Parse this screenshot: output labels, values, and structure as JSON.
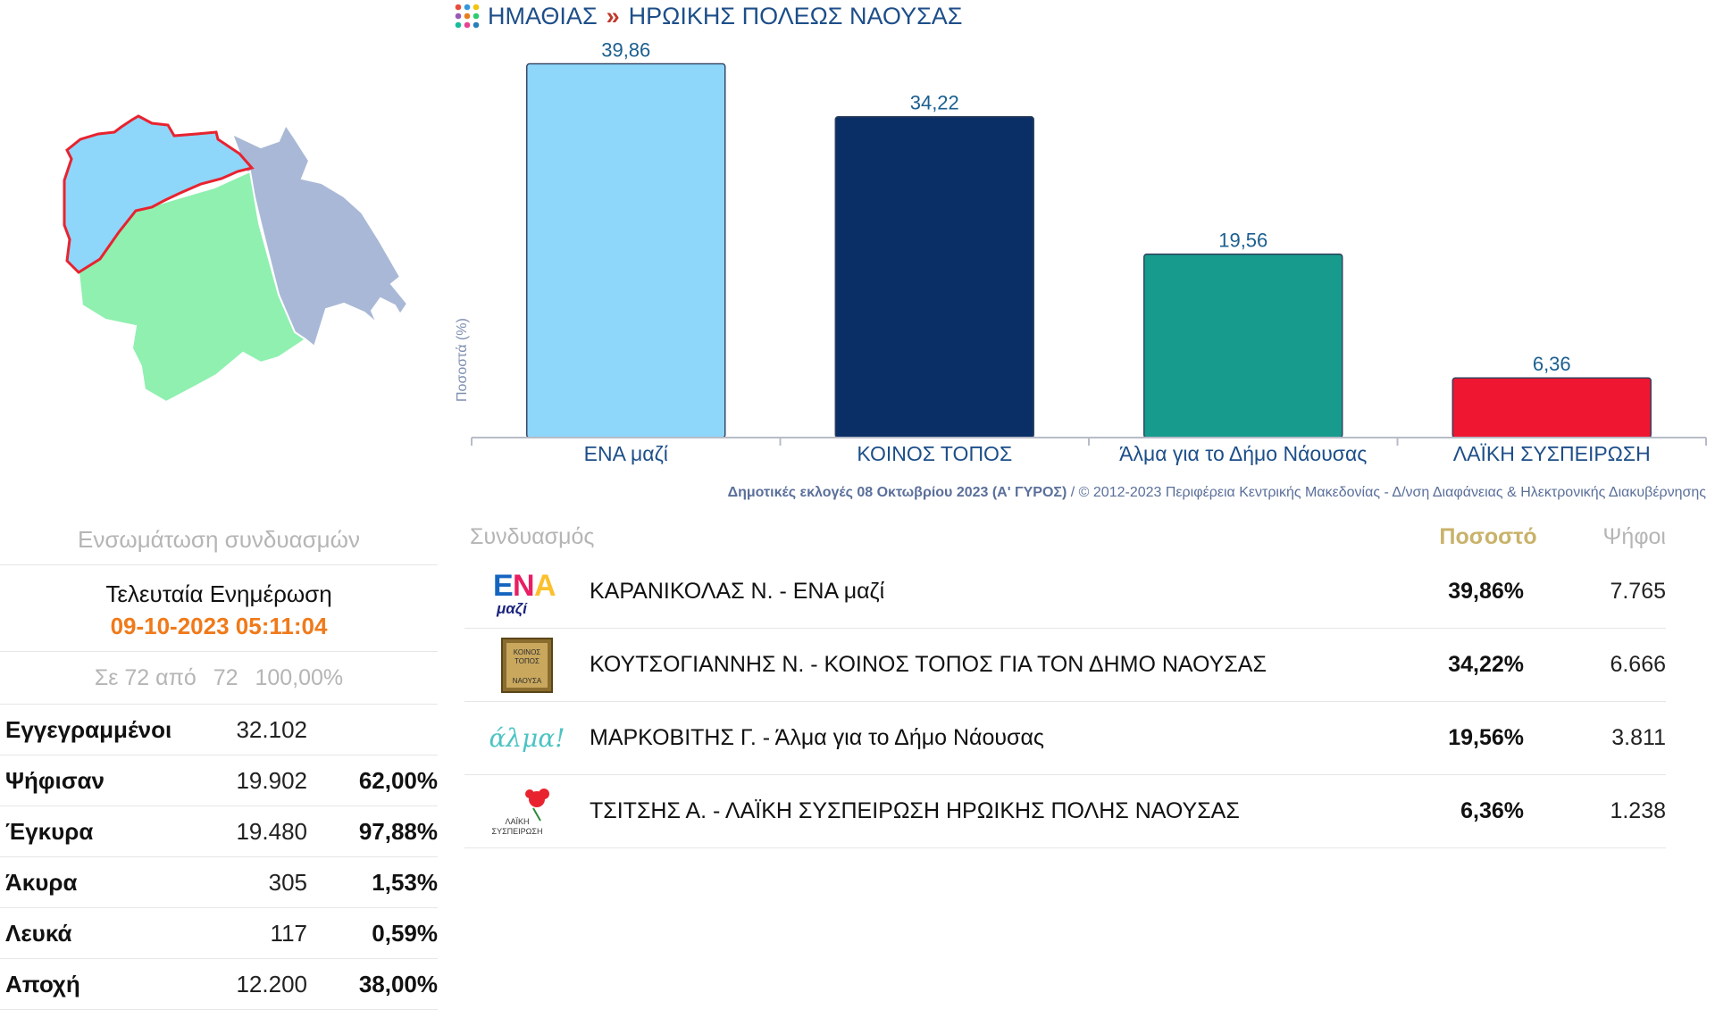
{
  "breadcrumb": {
    "region": "ΗΜΑΘΙΑΣ",
    "separator": "»",
    "municipality": "ΗΡΩΙΚΗΣ ΠΟΛΕΩΣ ΝΑΟΥΣΑΣ"
  },
  "chart_data": {
    "type": "bar",
    "categories": [
      "ΕΝΑ μαζί",
      "ΚΟΙΝΟΣ ΤΟΠΟΣ",
      "Άλμα για το Δήμο Νάουσας",
      "ΛΑΪΚΗ ΣΥΣΠΕΙΡΩΣΗ"
    ],
    "values": [
      39.86,
      34.22,
      19.56,
      6.36
    ],
    "value_labels": [
      "39,86",
      "34,22",
      "19,56",
      "6,36"
    ],
    "colors": [
      "#8fd6fb",
      "#0a2f66",
      "#179b8c",
      "#ee1631"
    ],
    "ylabel": "Ποσοστά (%)",
    "ylim": [
      0,
      40
    ],
    "grid": false,
    "legend": "none"
  },
  "credit": {
    "election": "Δημοτικές εκλογές 08 Οκτωβρίου 2023 (Α' ΓΥΡΟΣ)",
    "rest": " / © 2012-2023 Περιφέρεια Κεντρικής Μακεδονίας - Δ/νση Διαφάνειας & Ηλεκτρονικής Διακυβέρνησης"
  },
  "left_panel": {
    "heading": "Ενσωμάτωση συνδυασμών",
    "update_title": "Τελευταία Ενημέρωση",
    "update_time": "09-10-2023 05:11:04",
    "progress": {
      "prefix": "Σε 72 από",
      "total": "72",
      "percent": "100,00%"
    },
    "stats": [
      {
        "label": "Εγγεγραμμένοι",
        "value": "32.102",
        "pct": ""
      },
      {
        "label": "Ψήφισαν",
        "value": "19.902",
        "pct": "62,00%"
      },
      {
        "label": "Έγκυρα",
        "value": "19.480",
        "pct": "97,88%"
      },
      {
        "label": "Άκυρα",
        "value": "305",
        "pct": "1,53%"
      },
      {
        "label": "Λευκά",
        "value": "117",
        "pct": "0,59%"
      },
      {
        "label": "Αποχή",
        "value": "12.200",
        "pct": "38,00%"
      }
    ]
  },
  "results": {
    "headers": {
      "party": "Συνδυασμός",
      "pct": "Ποσοστό",
      "votes": "Ψήφοι"
    },
    "rows": [
      {
        "name": "ΚΑΡΑΝΙΚΟΛΑΣ Ν. - ΕΝΑ μαζί",
        "pct": "39,86%",
        "votes": "7.765",
        "logo_top": "ΕΝΑ",
        "logo_bottom": "μαζί"
      },
      {
        "name": "ΚΟΥΤΣΟΓΙΑΝΝΗΣ Ν. - ΚΟΙΝΟΣ ΤΟΠΟΣ ΓΙΑ ΤΟΝ ΔΗΜΟ ΝΑΟΥΣΑΣ",
        "pct": "34,22%",
        "votes": "6.666",
        "logo_top": "ΚΟΙΝΟΣ ΤΟΠΟΣ",
        "logo_bottom": "ΝΑΟΥΣΑ"
      },
      {
        "name": "ΜΑΡΚΟΒΙΤΗΣ Γ. - Άλμα για το Δήμο Νάουσας",
        "pct": "19,56%",
        "votes": "3.811",
        "logo_top": "άλμα!",
        "logo_bottom": ""
      },
      {
        "name": "ΤΣΙΤΣΗΣ Α. - ΛΑΪΚΗ ΣΥΣΠΕΙΡΩΣΗ ΗΡΩΙΚΗΣ ΠΟΛΗΣ ΝΑΟΥΣΑΣ",
        "pct": "6,36%",
        "votes": "1.238",
        "logo_top": "ΛΑΪΚΗ",
        "logo_bottom": "ΣΥΣΠΕΙΡΩΣΗ"
      }
    ]
  }
}
